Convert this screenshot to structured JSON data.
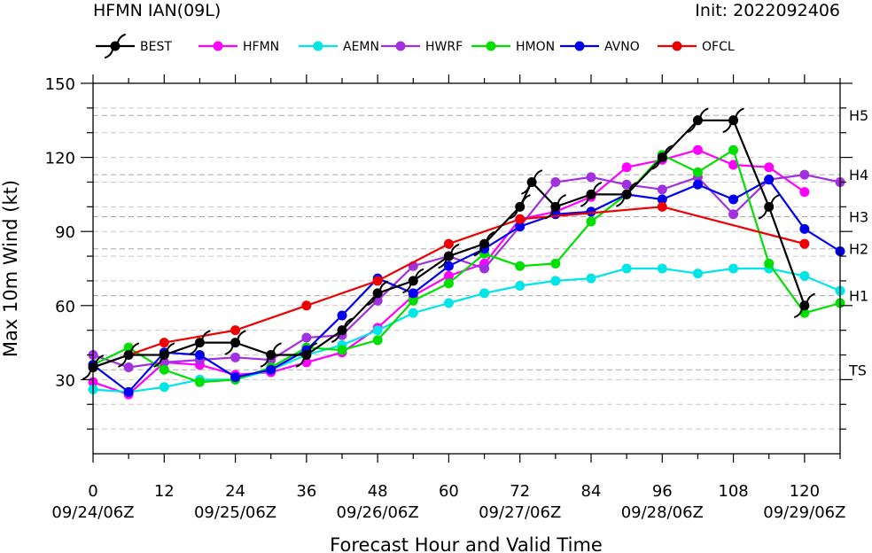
{
  "chart_data": {
    "type": "line",
    "title": "HFMN IAN(09L)",
    "subtitle": "Init: 2022092406",
    "xlabel": "Forecast Hour and Valid Time",
    "ylabel": "Max 10m Wind (kt)",
    "xlim": [
      0,
      126
    ],
    "ylim": [
      0,
      150
    ],
    "xticks": [
      0,
      12,
      24,
      36,
      48,
      60,
      72,
      84,
      96,
      108,
      120
    ],
    "yticks": [
      30,
      60,
      90,
      120,
      150
    ],
    "valid_times": [
      {
        "hour": 0,
        "label": "09/24/06Z"
      },
      {
        "hour": 24,
        "label": "09/25/06Z"
      },
      {
        "hour": 48,
        "label": "09/26/06Z"
      },
      {
        "hour": 72,
        "label": "09/27/06Z"
      },
      {
        "hour": 96,
        "label": "09/28/06Z"
      },
      {
        "hour": 120,
        "label": "09/29/06Z"
      }
    ],
    "thresholds": [
      {
        "label": "TS",
        "value": 34
      },
      {
        "label": "H1",
        "value": 64
      },
      {
        "label": "H2",
        "value": 83
      },
      {
        "label": "H3",
        "value": 96
      },
      {
        "label": "H4",
        "value": 113
      },
      {
        "label": "H5",
        "value": 137
      }
    ],
    "legend_position": "top",
    "series": [
      {
        "name": "HFMN",
        "color": "#ff00ff",
        "marker": "circle",
        "x": [
          0,
          6,
          12,
          18,
          24,
          30,
          36,
          42,
          48,
          54,
          60,
          66,
          72,
          78,
          84,
          90,
          96,
          102,
          108,
          114,
          120
        ],
        "y": [
          29,
          24,
          37,
          36,
          32,
          33,
          37,
          41,
          51,
          64,
          72,
          77,
          95,
          98,
          104,
          116,
          119,
          123,
          117,
          116,
          106
        ]
      },
      {
        "name": "AEMN",
        "color": "#00e5e5",
        "marker": "circle",
        "x": [
          0,
          6,
          12,
          18,
          24,
          30,
          36,
          42,
          48,
          54,
          60,
          66,
          72,
          78,
          84,
          90,
          96,
          102,
          108,
          114,
          120,
          126
        ],
        "y": [
          26,
          25,
          27,
          30,
          30,
          34,
          40,
          44,
          50,
          57,
          61,
          65,
          68,
          70,
          71,
          75,
          75,
          73,
          75,
          75,
          72,
          66
        ]
      },
      {
        "name": "HWRF",
        "color": "#a030e0",
        "marker": "circle",
        "x": [
          0,
          6,
          12,
          18,
          24,
          30,
          36,
          42,
          48,
          54,
          60,
          66,
          72,
          78,
          84,
          90,
          96,
          102,
          108,
          114,
          120,
          126
        ],
        "y": [
          40,
          35,
          37,
          38,
          39,
          38,
          47,
          48,
          62,
          76,
          80,
          75,
          92,
          110,
          112,
          109,
          107,
          112,
          97,
          111,
          113,
          110
        ]
      },
      {
        "name": "HMON",
        "color": "#00e000",
        "marker": "circle",
        "x": [
          0,
          6,
          12,
          18,
          24,
          30,
          36,
          42,
          48,
          54,
          60,
          66,
          72,
          78,
          84,
          90,
          96,
          102,
          108,
          114,
          120,
          126
        ],
        "y": [
          36,
          43,
          34,
          29,
          30,
          35,
          43,
          42,
          46,
          62,
          69,
          81,
          76,
          77,
          94,
          105,
          121,
          114,
          123,
          77,
          57,
          61
        ]
      },
      {
        "name": "AVNO",
        "color": "#0000ee",
        "marker": "circle",
        "x": [
          0,
          6,
          12,
          18,
          24,
          30,
          36,
          42,
          48,
          54,
          60,
          66,
          72,
          78,
          84,
          90,
          96,
          102,
          108,
          114,
          120,
          126
        ],
        "y": [
          36,
          25,
          41,
          40,
          31,
          34,
          42,
          56,
          71,
          65,
          76,
          83,
          92,
          97,
          98,
          105,
          103,
          109,
          103,
          111,
          91,
          82
        ]
      },
      {
        "name": "OFCL",
        "color": "#ee0000",
        "marker": "circle",
        "x": [
          0,
          12,
          24,
          36,
          48,
          60,
          72,
          96,
          120
        ],
        "y": [
          35,
          45,
          50,
          60,
          70,
          85,
          95,
          100,
          85
        ]
      },
      {
        "name": "BEST",
        "color": "#000000",
        "marker": "hurricane",
        "x": [
          0,
          6,
          12,
          18,
          24,
          30,
          36,
          42,
          48,
          54,
          60,
          66,
          72,
          74,
          78,
          84,
          90,
          96,
          102,
          108,
          114,
          120
        ],
        "y": [
          35,
          40,
          40,
          45,
          45,
          40,
          40,
          50,
          65,
          70,
          80,
          85,
          100,
          110,
          100,
          105,
          105,
          120,
          135,
          135,
          100,
          60
        ]
      }
    ],
    "legend_order": [
      "BEST",
      "HFMN",
      "AEMN",
      "HWRF",
      "HMON",
      "AVNO",
      "OFCL"
    ]
  }
}
